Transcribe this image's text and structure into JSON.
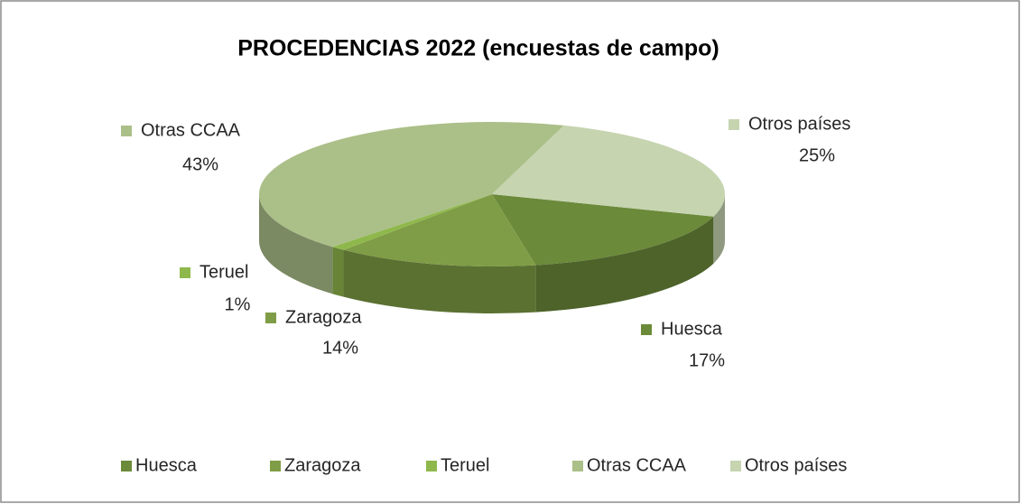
{
  "chart_data": {
    "type": "pie",
    "title": "PROCEDENCIAS 2022 (encuestas de campo)",
    "categories": [
      "Huesca",
      "Zaragoza",
      "Teruel",
      "Otras CCAA",
      "Otros países"
    ],
    "values": [
      17,
      14,
      1,
      43,
      25
    ],
    "value_labels": [
      "17%",
      "14%",
      "1%",
      "43%",
      "25%"
    ],
    "colors": [
      "#6b8a3a",
      "#7f9d46",
      "#8fb84c",
      "#abbf88",
      "#c6d4b0"
    ],
    "legend": "bottom"
  }
}
